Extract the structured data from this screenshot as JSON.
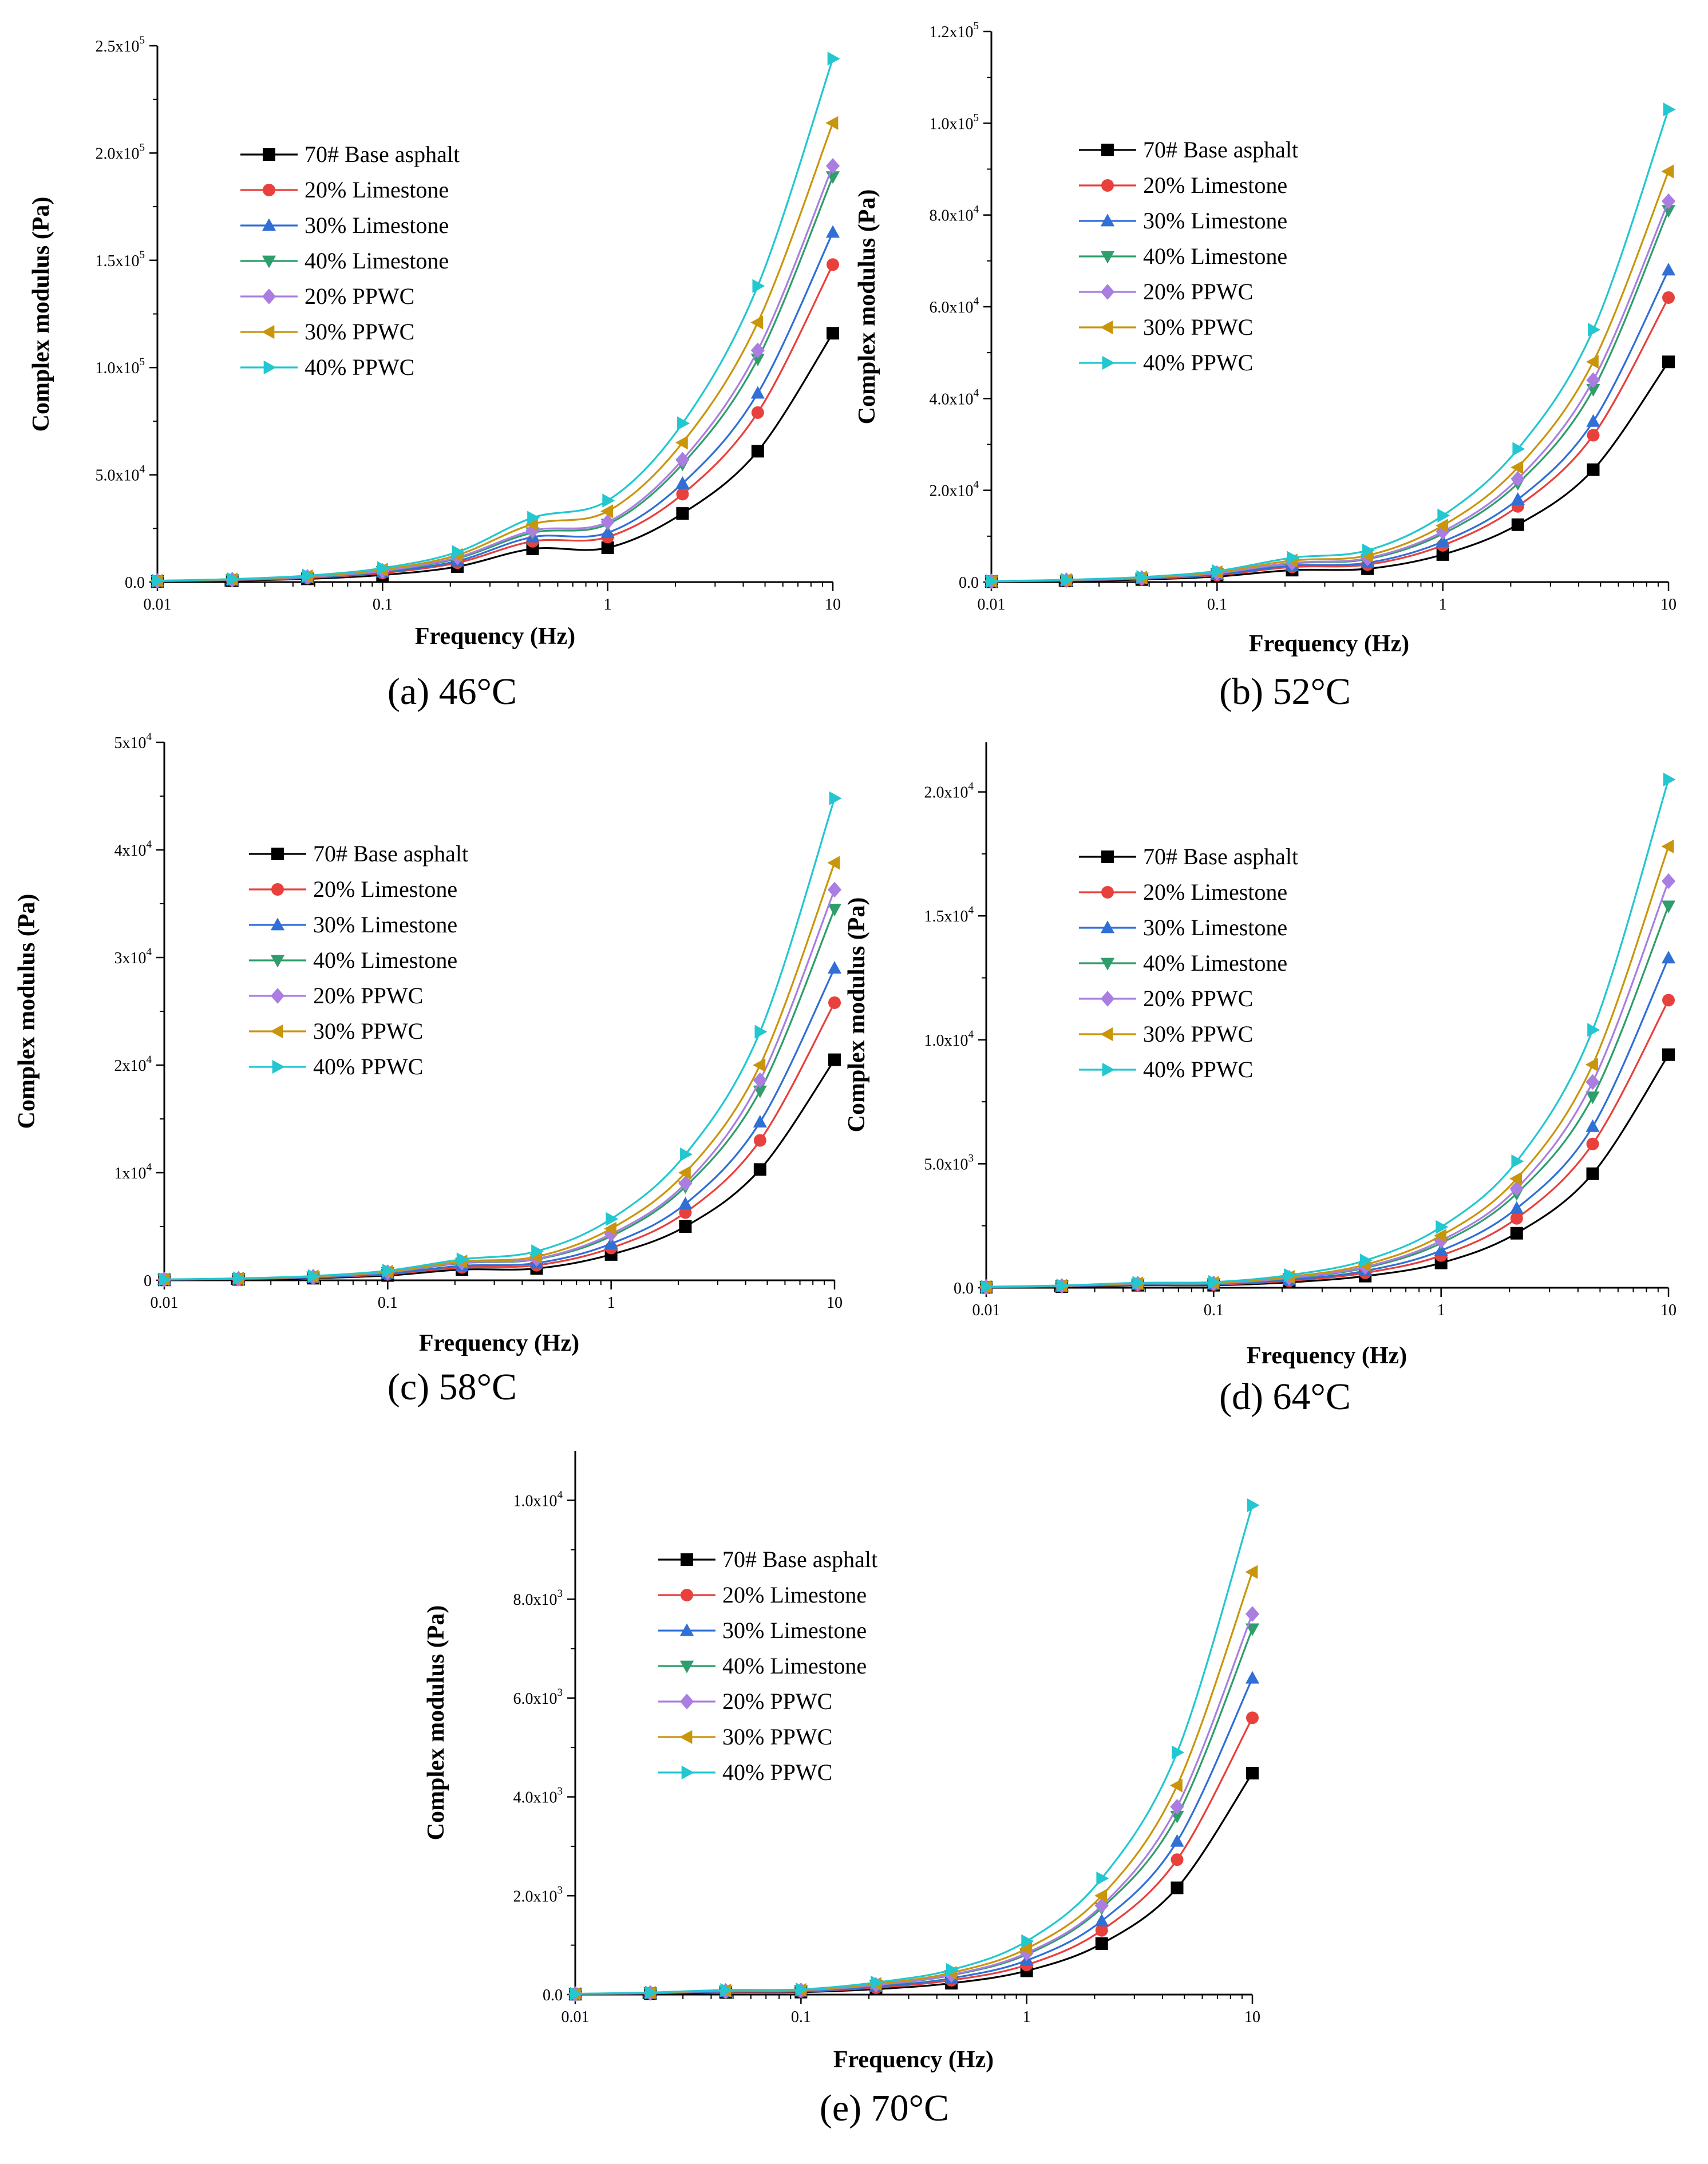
{
  "figure": {
    "type": "multi-panel complex modulus vs frequency curves"
  },
  "legend_styles": [
    {
      "label": "70# Base asphalt",
      "color": "#000000",
      "marker": "square"
    },
    {
      "label": "20% Limestone",
      "color": "#e8403c",
      "marker": "circle"
    },
    {
      "label": "30% Limestone",
      "color": "#2f6fd6",
      "marker": "triangle-up"
    },
    {
      "label": "40% Limestone",
      "color": "#2e9e6a",
      "marker": "triangle-down"
    },
    {
      "label": "20% PPWC",
      "color": "#a97ee0",
      "marker": "diamond"
    },
    {
      "label": "30% PPWC",
      "color": "#c9950b",
      "marker": "triangle-left"
    },
    {
      "label": "40% PPWC",
      "color": "#22c7d0",
      "marker": "triangle-right"
    }
  ],
  "chart_data": [
    {
      "type": "line",
      "caption": "(a) 46°C",
      "xlabel": "Frequency (Hz)",
      "ylabel": "Complex modulus (Pa)",
      "xscale": "log",
      "xlim": [
        0.01,
        10
      ],
      "ylim": [
        0,
        250000
      ],
      "x_ticks": [
        "0.01",
        "0.1",
        "1",
        "10"
      ],
      "y_ticks": [
        {
          "value": 0,
          "mantissa": "0.0",
          "exp": ""
        },
        {
          "value": 50000,
          "mantissa": "5.0x10",
          "exp": "4"
        },
        {
          "value": 100000,
          "mantissa": "1.0x10",
          "exp": "5"
        },
        {
          "value": 150000,
          "mantissa": "1.5x10",
          "exp": "5"
        },
        {
          "value": 200000,
          "mantissa": "2.0x10",
          "exp": "5"
        },
        {
          "value": 250000,
          "mantissa": "2.5x10",
          "exp": "5"
        }
      ],
      "legend_position": "upper-left",
      "x": [
        0.01,
        0.0215,
        0.0464,
        0.1,
        0.215,
        0.464,
        1,
        2.15,
        4.64,
        10
      ],
      "series": [
        {
          "name": "70# Base asphalt",
          "values": [
            300,
            700,
            1500,
            3300,
            7200,
            15500,
            16000,
            32000,
            61000,
            116000
          ]
        },
        {
          "name": "20% Limestone",
          "values": [
            400,
            900,
            1900,
            4200,
            9000,
            19000,
            21000,
            41000,
            79000,
            148000
          ]
        },
        {
          "name": "30% Limestone",
          "values": [
            450,
            1000,
            2100,
            4600,
            9800,
            21000,
            23000,
            46000,
            88000,
            163000
          ]
        },
        {
          "name": "40% Limestone",
          "values": [
            500,
            1100,
            2300,
            5000,
            11000,
            23000,
            27000,
            55000,
            104000,
            189000
          ]
        },
        {
          "name": "20% PPWC",
          "values": [
            520,
            1150,
            2400,
            5200,
            11500,
            24000,
            28000,
            57000,
            108000,
            194000
          ]
        },
        {
          "name": "30% PPWC",
          "values": [
            580,
            1250,
            2700,
            5800,
            12600,
            27000,
            33000,
            65000,
            121000,
            214000
          ]
        },
        {
          "name": "40% PPWC",
          "values": [
            650,
            1400,
            3000,
            6500,
            14000,
            30000,
            38000,
            74000,
            138000,
            244000
          ]
        }
      ]
    },
    {
      "type": "line",
      "caption": "(b) 52°C",
      "xlabel": "Frequency (Hz)",
      "ylabel": "Complex modulus (Pa)",
      "xscale": "log",
      "xlim": [
        0.01,
        10
      ],
      "ylim": [
        0,
        120000
      ],
      "x_ticks": [
        "0.01",
        "0.1",
        "1",
        "10"
      ],
      "y_ticks": [
        {
          "value": 0,
          "mantissa": "0.0",
          "exp": ""
        },
        {
          "value": 20000,
          "mantissa": "2.0x10",
          "exp": "4"
        },
        {
          "value": 40000,
          "mantissa": "4.0x10",
          "exp": "4"
        },
        {
          "value": 60000,
          "mantissa": "6.0x10",
          "exp": "4"
        },
        {
          "value": 80000,
          "mantissa": "8.0x10",
          "exp": "4"
        },
        {
          "value": 100000,
          "mantissa": "1.0x10",
          "exp": "5"
        },
        {
          "value": 120000,
          "mantissa": "1.2x10",
          "exp": "5"
        }
      ],
      "legend_position": "upper-left",
      "x": [
        0.01,
        0.0215,
        0.0464,
        0.1,
        0.215,
        0.464,
        1,
        2.15,
        4.64,
        10
      ],
      "series": [
        {
          "name": "70# Base asphalt",
          "values": [
            100,
            250,
            550,
            1200,
            2600,
            2900,
            6000,
            12500,
            24500,
            48000
          ]
        },
        {
          "name": "20% Limestone",
          "values": [
            130,
            320,
            700,
            1500,
            3300,
            3800,
            8000,
            16500,
            32000,
            62000
          ]
        },
        {
          "name": "30% Limestone",
          "values": [
            140,
            350,
            760,
            1650,
            3600,
            4200,
            8800,
            18000,
            35000,
            68000
          ]
        },
        {
          "name": "40% Limestone",
          "values": [
            160,
            400,
            870,
            1900,
            4100,
            5000,
            10500,
            21500,
            42000,
            81000
          ]
        },
        {
          "name": "20% PPWC",
          "values": [
            165,
            410,
            890,
            1950,
            4200,
            5200,
            11000,
            22500,
            44000,
            83000
          ]
        },
        {
          "name": "30% PPWC",
          "values": [
            180,
            450,
            980,
            2150,
            4700,
            5800,
            12300,
            25000,
            48000,
            89500
          ]
        },
        {
          "name": "40% PPWC",
          "values": [
            200,
            500,
            1100,
            2400,
            5300,
            6900,
            14500,
            29000,
            55000,
            103000
          ]
        }
      ]
    },
    {
      "type": "line",
      "caption": "(c) 58°C",
      "xlabel": "Frequency (Hz)",
      "ylabel": "Complex modulus (Pa)",
      "xscale": "log",
      "xlim": [
        0.01,
        10
      ],
      "ylim": [
        0,
        50000
      ],
      "x_ticks": [
        "0.01",
        "0.1",
        "1",
        "10"
      ],
      "y_ticks": [
        {
          "value": 0,
          "mantissa": "0",
          "exp": ""
        },
        {
          "value": 10000,
          "mantissa": "1x10",
          "exp": "4"
        },
        {
          "value": 20000,
          "mantissa": "2x10",
          "exp": "4"
        },
        {
          "value": 30000,
          "mantissa": "3x10",
          "exp": "4"
        },
        {
          "value": 40000,
          "mantissa": "4x10",
          "exp": "4"
        },
        {
          "value": 50000,
          "mantissa": "5x10",
          "exp": "4"
        }
      ],
      "legend_position": "upper-left",
      "x": [
        0.01,
        0.0215,
        0.0464,
        0.1,
        0.215,
        0.464,
        1,
        2.15,
        4.64,
        10
      ],
      "series": [
        {
          "name": "70# Base asphalt",
          "values": [
            40,
            90,
            200,
            450,
            1000,
            1100,
            2400,
            5000,
            10300,
            20500
          ]
        },
        {
          "name": "20% Limestone",
          "values": [
            50,
            110,
            250,
            560,
            1200,
            1400,
            3000,
            6300,
            13000,
            25800
          ]
        },
        {
          "name": "30% Limestone",
          "values": [
            55,
            125,
            280,
            620,
            1350,
            1600,
            3400,
            7100,
            14700,
            29000
          ]
        },
        {
          "name": "40% Limestone",
          "values": [
            65,
            150,
            330,
            730,
            1600,
            1950,
            4100,
            8700,
            17600,
            34500
          ]
        },
        {
          "name": "20% PPWC",
          "values": [
            68,
            155,
            340,
            750,
            1650,
            2000,
            4300,
            9000,
            18600,
            36300
          ]
        },
        {
          "name": "30% PPWC",
          "values": [
            72,
            165,
            360,
            800,
            1750,
            2200,
            4800,
            10000,
            20000,
            38800
          ]
        },
        {
          "name": "40% PPWC",
          "values": [
            80,
            185,
            400,
            900,
            1950,
            2700,
            5700,
            11700,
            23100,
            44800
          ]
        }
      ]
    },
    {
      "type": "line",
      "caption": "(d) 64°C",
      "xlabel": "Frequency (Hz)",
      "ylabel": "Complex modulus (Pa)",
      "xscale": "log",
      "xlim": [
        0.01,
        10
      ],
      "ylim": [
        0,
        22000
      ],
      "x_ticks": [
        "0.01",
        "0.1",
        "1",
        "10"
      ],
      "y_ticks": [
        {
          "value": 0,
          "mantissa": "0.0",
          "exp": ""
        },
        {
          "value": 5000,
          "mantissa": "5.0x10",
          "exp": "3"
        },
        {
          "value": 10000,
          "mantissa": "1.0x10",
          "exp": "4"
        },
        {
          "value": 15000,
          "mantissa": "1.5x10",
          "exp": "4"
        },
        {
          "value": 20000,
          "mantissa": "2.0x10",
          "exp": "4"
        }
      ],
      "legend_position": "upper-left",
      "x": [
        0.01,
        0.0215,
        0.0464,
        0.1,
        0.215,
        0.464,
        1,
        2.15,
        4.64,
        10
      ],
      "series": [
        {
          "name": "70# Base asphalt",
          "values": [
            20,
            45,
            100,
            100,
            220,
            470,
            1000,
            2200,
            4600,
            9400
          ]
        },
        {
          "name": "20% Limestone",
          "values": [
            25,
            55,
            120,
            130,
            280,
            600,
            1300,
            2800,
            5800,
            11600
          ]
        },
        {
          "name": "30% Limestone",
          "values": [
            28,
            60,
            135,
            145,
            320,
            680,
            1500,
            3200,
            6500,
            13300
          ]
        },
        {
          "name": "40% Limestone",
          "values": [
            33,
            72,
            160,
            170,
            380,
            800,
            1800,
            3800,
            7700,
            15400
          ]
        },
        {
          "name": "20% PPWC",
          "values": [
            35,
            75,
            165,
            180,
            400,
            840,
            1900,
            4000,
            8300,
            16400
          ]
        },
        {
          "name": "30% PPWC",
          "values": [
            38,
            82,
            180,
            200,
            440,
            930,
            2100,
            4400,
            9000,
            17800
          ]
        },
        {
          "name": "40% PPWC",
          "values": [
            42,
            92,
            200,
            230,
            510,
            1100,
            2450,
            5100,
            10400,
            20500
          ]
        }
      ]
    },
    {
      "type": "line",
      "caption": "(e) 70°C",
      "xlabel": "Frequency (Hz)",
      "ylabel": "Complex modulus (Pa)",
      "xscale": "log",
      "xlim": [
        0.01,
        10
      ],
      "ylim": [
        0,
        11000
      ],
      "x_ticks": [
        "0.01",
        "0.1",
        "1",
        "10"
      ],
      "y_ticks": [
        {
          "value": 0,
          "mantissa": "0.0",
          "exp": ""
        },
        {
          "value": 2000,
          "mantissa": "2.0x10",
          "exp": "3"
        },
        {
          "value": 4000,
          "mantissa": "4.0x10",
          "exp": "3"
        },
        {
          "value": 6000,
          "mantissa": "6.0x10",
          "exp": "3"
        },
        {
          "value": 8000,
          "mantissa": "8.0x10",
          "exp": "3"
        },
        {
          "value": 10000,
          "mantissa": "1.0x10",
          "exp": "4"
        }
      ],
      "legend_position": "upper-left",
      "x": [
        0.01,
        0.0215,
        0.0464,
        0.1,
        0.215,
        0.464,
        1,
        2.15,
        4.64,
        10
      ],
      "series": [
        {
          "name": "70# Base asphalt",
          "values": [
            8,
            20,
            45,
            50,
            110,
            230,
            480,
            1030,
            2160,
            4480
          ]
        },
        {
          "name": "20% Limestone",
          "values": [
            10,
            25,
            55,
            62,
            140,
            290,
            600,
            1300,
            2730,
            5600
          ]
        },
        {
          "name": "30% Limestone",
          "values": [
            11,
            28,
            62,
            70,
            160,
            330,
            690,
            1490,
            3100,
            6400
          ]
        },
        {
          "name": "40% Limestone",
          "values": [
            13,
            33,
            73,
            83,
            190,
            390,
            810,
            1750,
            3610,
            7400
          ]
        },
        {
          "name": "20% PPWC",
          "values": [
            13,
            34,
            75,
            85,
            195,
            400,
            840,
            1800,
            3800,
            7700
          ]
        },
        {
          "name": "30% PPWC",
          "values": [
            14,
            37,
            82,
            93,
            215,
            440,
            930,
            2000,
            4230,
            8550
          ]
        },
        {
          "name": "40% PPWC",
          "values": [
            16,
            42,
            93,
            105,
            245,
            500,
            1080,
            2350,
            4900,
            9900
          ]
        }
      ]
    }
  ]
}
